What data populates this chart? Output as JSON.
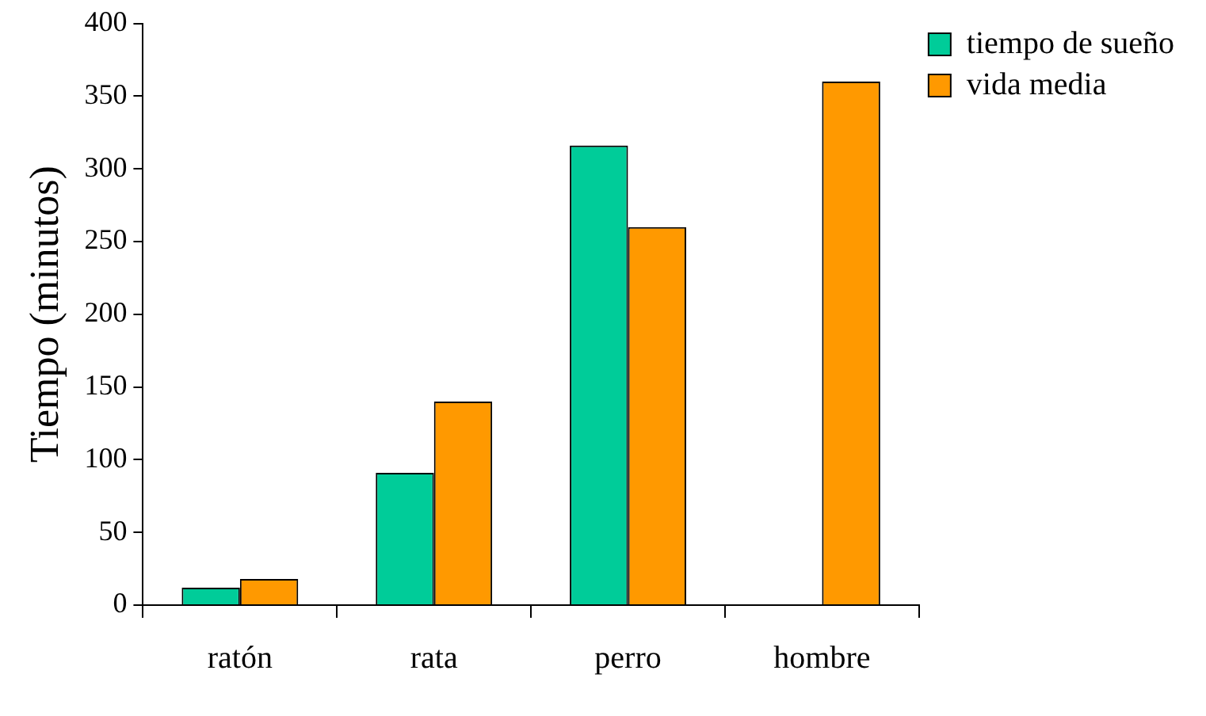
{
  "chart_data": {
    "type": "bar",
    "ylabel": "Tiempo (minutos)",
    "categories": [
      "ratón",
      "rata",
      "perro",
      "hombre"
    ],
    "series": [
      {
        "name": "tiempo de sueño",
        "color": "#00cc99",
        "values": [
          12,
          91,
          316,
          null
        ]
      },
      {
        "name": "vida media",
        "color": "#ff9900",
        "values": [
          18,
          140,
          260,
          360
        ]
      }
    ],
    "ylim": [
      0,
      400
    ],
    "yticks": [
      0,
      50,
      100,
      150,
      200,
      250,
      300,
      350,
      400
    ],
    "grid": false,
    "legend": "right"
  }
}
